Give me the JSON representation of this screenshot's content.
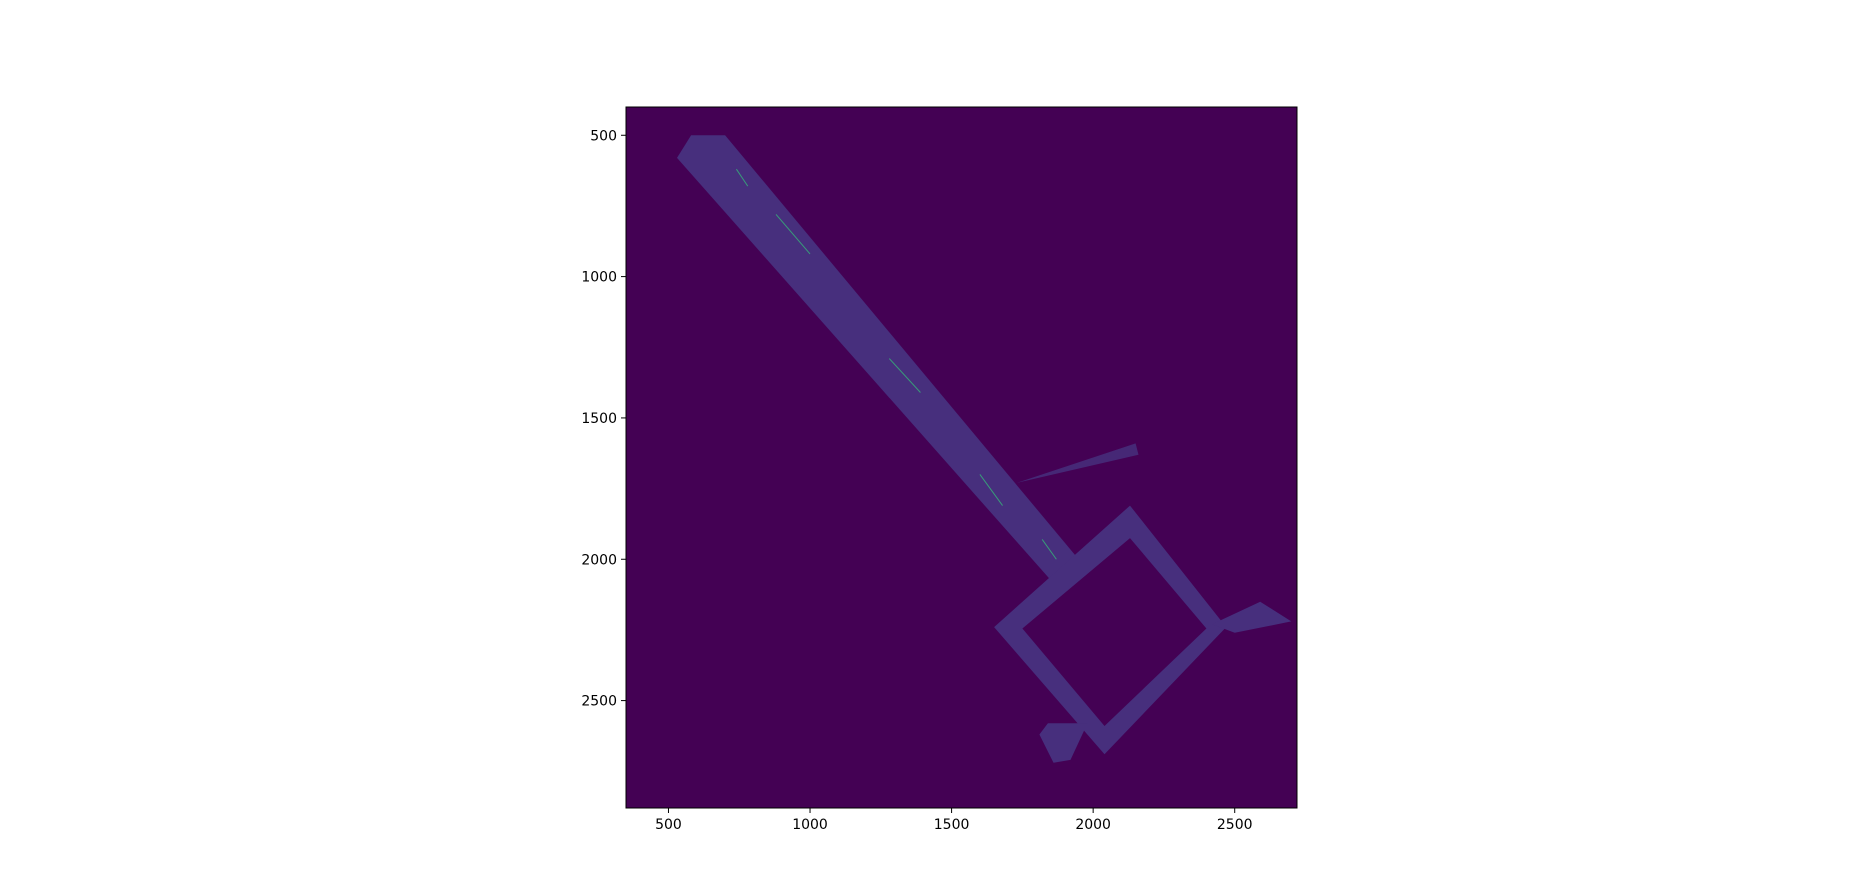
{
  "chart_data": {
    "type": "heatmap",
    "title": "",
    "xlabel": "",
    "ylabel": "",
    "xlim": [
      350,
      2720
    ],
    "ylim": [
      2880,
      400
    ],
    "y_inverted": true,
    "xticks": [
      500,
      1000,
      1500,
      2000,
      2500
    ],
    "yticks": [
      500,
      1000,
      1500,
      2000,
      2500
    ],
    "xtick_labels": [
      "500",
      "1000",
      "1500",
      "2000",
      "2500"
    ],
    "ytick_labels": [
      "500",
      "1000",
      "1500",
      "2000",
      "2500"
    ],
    "grid": false,
    "colormap": "viridis",
    "colors": {
      "background": "#440154",
      "free_space": "#472f7d",
      "trace": "#35b779"
    },
    "corridor": {
      "polygon": [
        [
          530,
          580
        ],
        [
          580,
          500
        ],
        [
          700,
          500
        ],
        [
          1940,
          1990
        ],
        [
          1860,
          2085
        ]
      ]
    },
    "square_loop": {
      "outer": [
        [
          2130,
          1810
        ],
        [
          2470,
          2240
        ],
        [
          2040,
          2690
        ],
        [
          1650,
          2240
        ]
      ],
      "inner": [
        [
          2130,
          1925
        ],
        [
          2400,
          2245
        ],
        [
          2040,
          2590
        ],
        [
          1750,
          2245
        ]
      ]
    },
    "right_spur": {
      "polygon": [
        [
          2420,
          2230
        ],
        [
          2590,
          2150
        ],
        [
          2700,
          2220
        ],
        [
          2500,
          2260
        ]
      ]
    },
    "ray_fan": {
      "polygon": [
        [
          1730,
          1730
        ],
        [
          2150,
          1590
        ],
        [
          2160,
          1630
        ]
      ]
    },
    "bottom_fan": {
      "polygon": [
        [
          1840,
          2580
        ],
        [
          1980,
          2580
        ],
        [
          1920,
          2710
        ],
        [
          1860,
          2720
        ],
        [
          1810,
          2620
        ]
      ]
    },
    "traces": [
      [
        [
          740,
          620
        ],
        [
          780,
          680
        ]
      ],
      [
        [
          880,
          780
        ],
        [
          1000,
          920
        ]
      ],
      [
        [
          1280,
          1290
        ],
        [
          1390,
          1410
        ]
      ],
      [
        [
          1600,
          1700
        ],
        [
          1680,
          1810
        ]
      ],
      [
        [
          1820,
          1930
        ],
        [
          1870,
          2000
        ]
      ]
    ]
  }
}
